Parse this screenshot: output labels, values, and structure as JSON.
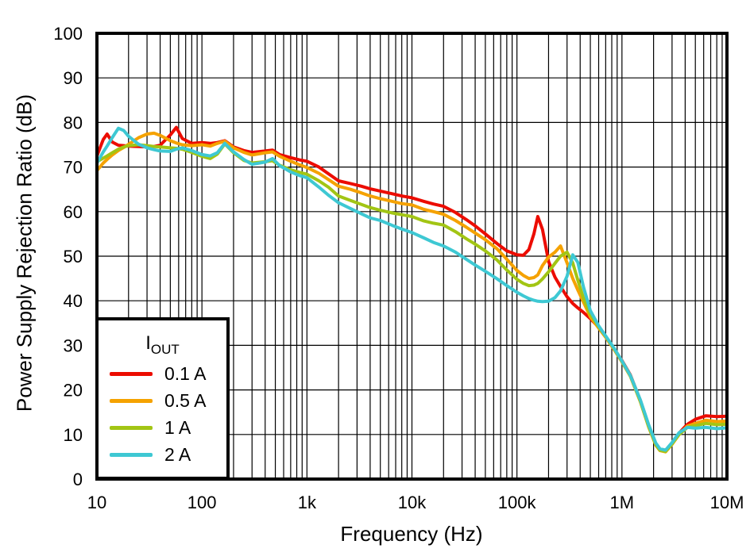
{
  "figure": {
    "background": "#ffffff",
    "grid_color": "#000000",
    "axis_border_color": "#000000"
  },
  "legend": {
    "title_base": "I",
    "title_sub": "OUT",
    "position": "bottom-left"
  },
  "chart_data": {
    "type": "line",
    "title": "",
    "xlabel": "Frequency (Hz)",
    "ylabel": "Power Supply Rejection Ratio (dB)",
    "x_scale": "log",
    "xlim": [
      10,
      10000000
    ],
    "ylim": [
      0,
      100
    ],
    "grid": {
      "horizontal_step_db": 10,
      "vertical": "log decades with minor lines 2-9",
      "visible": true
    },
    "x_ticks": [
      {
        "value": 10,
        "label": "10"
      },
      {
        "value": 100,
        "label": "100"
      },
      {
        "value": 1000,
        "label": "1k"
      },
      {
        "value": 10000,
        "label": "10k"
      },
      {
        "value": 100000,
        "label": "100k"
      },
      {
        "value": 1000000,
        "label": "1M"
      },
      {
        "value": 10000000,
        "label": "10M"
      }
    ],
    "y_ticks": [
      0,
      10,
      20,
      30,
      40,
      50,
      60,
      70,
      80,
      90,
      100
    ],
    "x": [
      10,
      11.5,
      12.5,
      14,
      16,
      18,
      20,
      25,
      30,
      35,
      40,
      50,
      57,
      65,
      80,
      100,
      120,
      140,
      165,
      200,
      250,
      300,
      400,
      470,
      550,
      700,
      850,
      1000,
      1300,
      1600,
      2000,
      2600,
      3300,
      4000,
      5000,
      6500,
      8000,
      10000,
      13000,
      16000,
      20000,
      26000,
      33000,
      40000,
      50000,
      65000,
      80000,
      100000,
      115000,
      130000,
      145000,
      158000,
      175000,
      200000,
      230000,
      260000,
      300000,
      340000,
      380000,
      430000,
      500000,
      600000,
      700000,
      850000,
      1000000,
      1200000,
      1500000,
      1800000,
      2100000,
      2300000,
      2600000,
      3000000,
      3500000,
      4200000,
      5000000,
      6300000,
      8000000,
      10000000
    ],
    "series": [
      {
        "name": "0.1 A",
        "color": "#EC0C00",
        "values": [
          72.5,
          76.2,
          77.4,
          75.6,
          74.9,
          74.8,
          74.7,
          74.6,
          74.5,
          74.6,
          74.9,
          77.2,
          78.9,
          76.4,
          75.3,
          75.5,
          75.3,
          75.5,
          75.9,
          74.5,
          73.7,
          73.3,
          73.6,
          73.8,
          72.8,
          72.1,
          71.6,
          71.3,
          70.0,
          68.5,
          66.9,
          66.3,
          65.7,
          65.1,
          64.6,
          64.0,
          63.5,
          63.1,
          62.3,
          61.7,
          61.2,
          59.8,
          58.2,
          56.8,
          55.0,
          52.8,
          51.2,
          50.3,
          50.2,
          51.5,
          55.0,
          58.9,
          56.0,
          48.8,
          45.3,
          43.2,
          40.9,
          39.4,
          38.4,
          37.4,
          36.0,
          34.1,
          32.0,
          29.1,
          26.6,
          23.4,
          17.6,
          11.9,
          7.9,
          6.7,
          6.3,
          8.0,
          10.3,
          12.3,
          13.4,
          14.2,
          14.0,
          14.1
        ]
      },
      {
        "name": "0.5 A",
        "color": "#F5A200",
        "values": [
          69.2,
          70.9,
          71.7,
          72.7,
          73.7,
          74.4,
          75.1,
          76.6,
          77.4,
          77.6,
          77.1,
          75.9,
          75.4,
          75.0,
          74.8,
          75.0,
          74.7,
          75.3,
          75.8,
          74.3,
          73.3,
          72.7,
          73.2,
          73.4,
          72.4,
          71.3,
          70.5,
          69.9,
          68.6,
          67.2,
          65.7,
          65.0,
          64.2,
          63.5,
          62.9,
          62.3,
          61.8,
          61.5,
          60.5,
          60.0,
          59.4,
          58.0,
          56.5,
          55.2,
          53.7,
          51.6,
          49.3,
          46.8,
          45.7,
          45.0,
          45.2,
          45.8,
          47.9,
          49.8,
          50.9,
          52.3,
          48.5,
          45.0,
          42.4,
          39.7,
          36.4,
          33.9,
          31.8,
          28.9,
          26.3,
          23.1,
          17.3,
          11.6,
          7.6,
          6.4,
          6.1,
          7.8,
          10.0,
          11.9,
          12.5,
          13.2,
          12.9,
          13.0
        ]
      },
      {
        "name": "1 A",
        "color": "#A2C514",
        "values": [
          71.2,
          72.0,
          72.5,
          73.2,
          74.0,
          74.5,
          74.8,
          75.0,
          74.8,
          74.6,
          74.5,
          74.3,
          74.2,
          74.0,
          73.3,
          72.4,
          71.9,
          72.9,
          75.2,
          73.2,
          71.5,
          70.9,
          71.2,
          71.4,
          70.4,
          69.4,
          68.8,
          68.4,
          66.9,
          65.5,
          63.5,
          62.5,
          61.6,
          60.9,
          60.3,
          59.7,
          59.3,
          58.9,
          57.9,
          57.4,
          57.0,
          55.5,
          53.9,
          52.7,
          51.2,
          49.1,
          46.9,
          44.8,
          43.9,
          43.4,
          43.5,
          43.9,
          44.9,
          46.5,
          48.4,
          50.0,
          50.9,
          48.5,
          44.6,
          40.6,
          37.0,
          34.2,
          32.0,
          29.1,
          26.4,
          23.2,
          17.4,
          11.7,
          7.7,
          6.5,
          6.2,
          7.9,
          10.0,
          11.6,
          12.0,
          12.5,
          12.2,
          12.3
        ]
      },
      {
        "name": "2 A",
        "color": "#3EC8D3",
        "values": [
          70.9,
          73.4,
          74.7,
          76.6,
          78.7,
          78.2,
          76.9,
          75.1,
          74.3,
          73.9,
          73.6,
          73.5,
          74.0,
          74.3,
          73.7,
          72.8,
          72.5,
          73.2,
          75.3,
          73.4,
          71.7,
          70.6,
          71.1,
          71.9,
          70.3,
          68.9,
          68.1,
          67.6,
          65.5,
          63.7,
          62.0,
          60.7,
          59.5,
          58.6,
          58.0,
          56.9,
          56.1,
          55.3,
          54.1,
          53.1,
          52.3,
          50.9,
          49.3,
          48.0,
          46.6,
          44.9,
          43.4,
          41.9,
          41.1,
          40.5,
          40.1,
          39.9,
          39.8,
          39.9,
          40.7,
          42.2,
          45.5,
          50.3,
          48.6,
          43.1,
          37.8,
          34.4,
          32.1,
          29.2,
          26.5,
          23.3,
          17.7,
          12.1,
          8.1,
          6.8,
          6.5,
          8.2,
          10.4,
          11.6,
          11.4,
          11.6,
          11.3,
          11.5
        ]
      }
    ]
  }
}
